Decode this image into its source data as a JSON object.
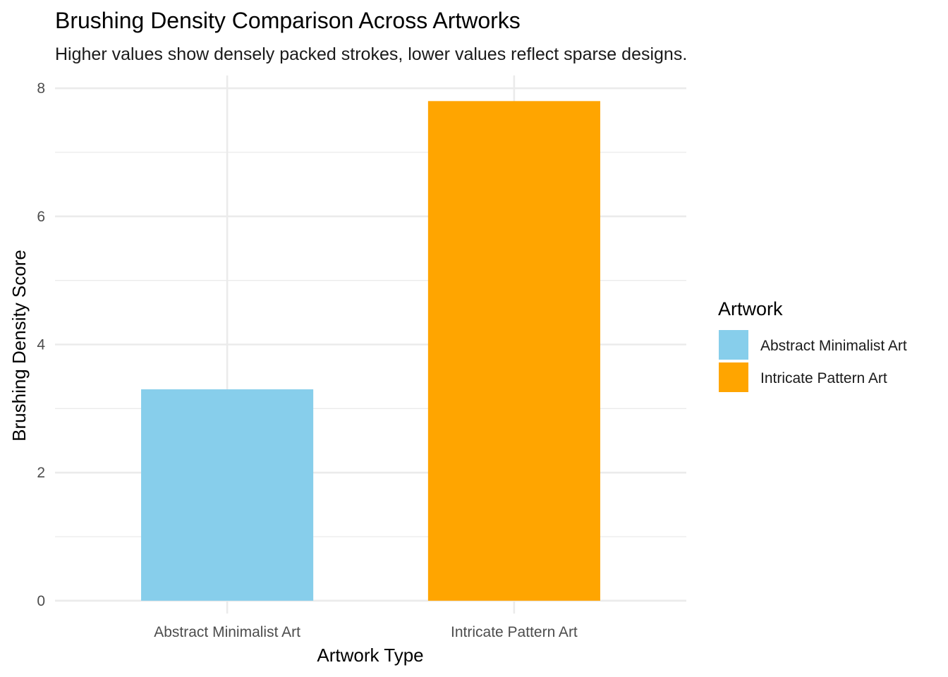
{
  "chart_data": {
    "type": "bar",
    "title": "Brushing Density Comparison Across Artworks",
    "subtitle": "Higher values show densely packed strokes, lower values reflect sparse designs.",
    "xlabel": "Artwork Type",
    "ylabel": "Brushing Density Score",
    "categories": [
      "Abstract Minimalist Art",
      "Intricate Pattern Art"
    ],
    "values": [
      3.3,
      7.8
    ],
    "colors": [
      "#87CEEB",
      "#FFA500"
    ],
    "ylim": [
      -0.2,
      8.2
    ],
    "yticks": [
      0,
      2,
      4,
      6,
      8
    ],
    "grid": true,
    "legend": {
      "title": "Artwork",
      "position": "right",
      "entries": [
        "Abstract Minimalist Art",
        "Intricate Pattern Art"
      ]
    }
  }
}
